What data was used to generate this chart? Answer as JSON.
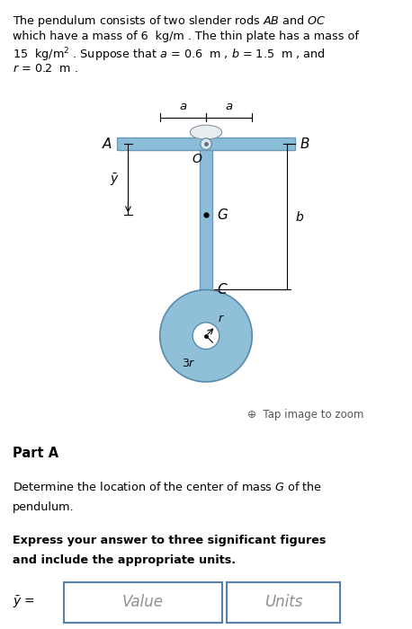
{
  "top_lines": [
    "The pendulum consists of two slender rods $AB$ and $OC$",
    "which have a mass of 6  kg/m . The thin plate has a mass of",
    "15  kg/m$^2$ . Suppose that $a$ = 0.6  m , $b$ = 1.5  m , and",
    "$r$ = 0.2  m ."
  ],
  "part_a_title": "Part A",
  "part_a_desc1": "Determine the location of the center of mass $G$ of the",
  "part_a_desc2": "pendulum.",
  "bold_line1": "Express your answer to three significant figures",
  "bold_line2": "and include the appropriate units.",
  "answer_label": "$\\bar{y}$ =",
  "value_placeholder": "Value",
  "units_placeholder": "Units",
  "rod_color": "#8bbdd9",
  "rod_edge": "#6a9ab8",
  "disk_color": "#90c0d8",
  "disk_edge": "#5a8aaa",
  "pin_color": "#d8e8f0",
  "pin_edge": "#7090a8",
  "box_border": "#5580b0",
  "diagram_bg": "#f5f8fa",
  "diagram_border": "#b8c8d4",
  "tap_zoom_color": "#555555"
}
